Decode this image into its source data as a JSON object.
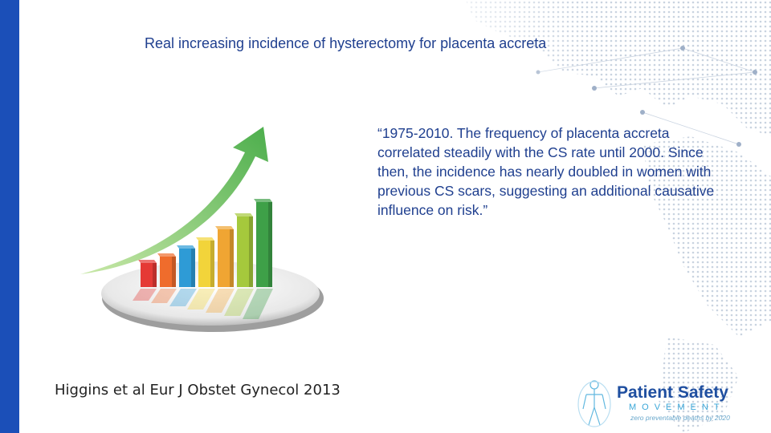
{
  "slide": {
    "title": "Real increasing incidence of hysterectomy for placenta accreta",
    "quote": "“1975-2010. The frequency of placenta accreta correlated steadily with the CS rate until 2000. Since then, the incidence has nearly doubled in women with previous CS scars, suggesting an additional causative influence on risk.”",
    "citation": "Higgins et al Eur J Obstet Gynecol 2013"
  },
  "logo": {
    "name": "Patient Safety",
    "subtitle": "MOVEMENT",
    "tagline": "zero preventable deaths by 2020"
  },
  "graphic": {
    "bar_colors": [
      "#e53935",
      "#ef6c2c",
      "#2e9bd6",
      "#f2d43a",
      "#f0a533",
      "#a5c93c",
      "#3ea048"
    ],
    "arrow_color": "#5cb85c",
    "accent_color": "#1b4fb8"
  }
}
